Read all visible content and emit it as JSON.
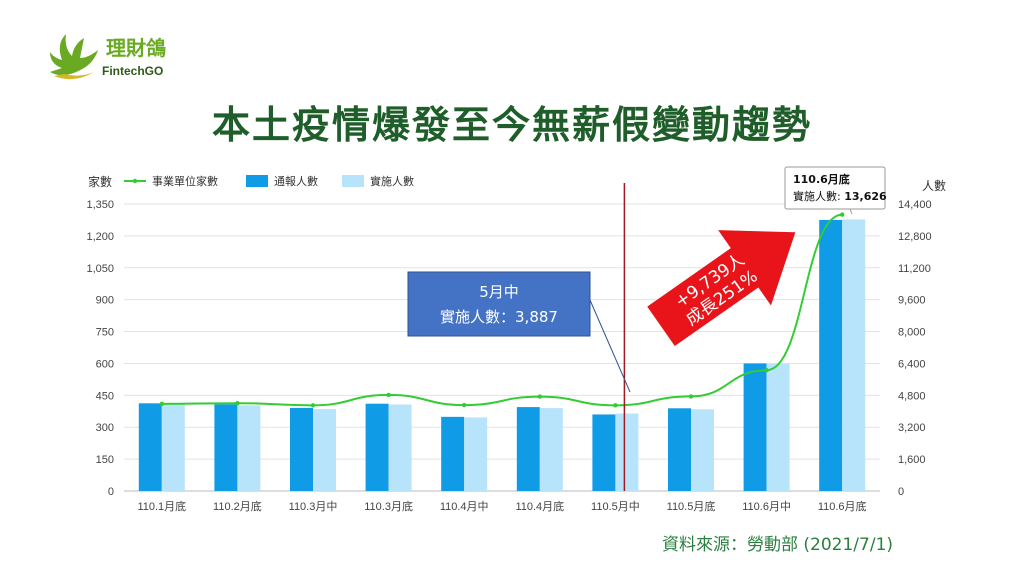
{
  "logo": {
    "name_cn": "理財鴿",
    "name_en": "FintechGO"
  },
  "title": "本土疫情爆發至今無薪假變動趨勢",
  "source": "資料來源：勞動部 (2021/7/1)",
  "colors": {
    "line": "#33cc33",
    "notified": "#0f9be6",
    "implemented": "#b7e4fb",
    "arrow": "#e8141a",
    "callout": "#4472c4",
    "divider": "#a01a22",
    "title": "#1f5e2a"
  },
  "annotations": {
    "may_mid_box_line1": "5月中",
    "may_mid_box_line2": "實施人數：3,887",
    "arrow_line1": "+9,739人",
    "arrow_line2": "成長251%",
    "tooltip_line1": "110.6月底",
    "tooltip_line2_label": "實施人數: ",
    "tooltip_line2_value": "13,626"
  },
  "chart_data": {
    "type": "bar",
    "categories": [
      "110.1月底",
      "110.2月底",
      "110.3月中",
      "110.3月底",
      "110.4月中",
      "110.4月底",
      "110.5月中",
      "110.5月底",
      "110.6月中",
      "110.6月底"
    ],
    "left_axis_label": "家數",
    "right_axis_label": "人數",
    "left_ylim": [
      0,
      1350
    ],
    "left_ticks": [
      0,
      150,
      300,
      450,
      600,
      750,
      900,
      1050,
      1200,
      1350
    ],
    "left_tick_labels": [
      "0",
      "150",
      "300",
      "450",
      "600",
      "750",
      "900",
      "1,050",
      "1,200",
      "1,350"
    ],
    "right_ylim": [
      0,
      14400
    ],
    "right_ticks": [
      0,
      1600,
      3200,
      4800,
      6400,
      8000,
      9600,
      11200,
      12800,
      14400
    ],
    "right_tick_labels": [
      "0",
      "1,600",
      "3,200",
      "4,800",
      "6,400",
      "8,000",
      "9,600",
      "11,200",
      "12,800",
      "14,400"
    ],
    "grid": true,
    "legend_position": "top-left",
    "series": [
      {
        "name": "事業單位家數",
        "type": "line",
        "axis": "left",
        "values": [
          410,
          413,
          403,
          452,
          404,
          444,
          403,
          445,
          568,
          1300
        ]
      },
      {
        "name": "通報人數",
        "type": "bar",
        "axis": "right",
        "values": [
          4400,
          4350,
          4170,
          4380,
          3720,
          4210,
          3840,
          4150,
          6400,
          13600
        ]
      },
      {
        "name": "實施人數",
        "type": "bar",
        "axis": "right",
        "values": [
          4350,
          4300,
          4110,
          4340,
          3690,
          4160,
          3887,
          4100,
          6380,
          13626
        ]
      }
    ]
  }
}
